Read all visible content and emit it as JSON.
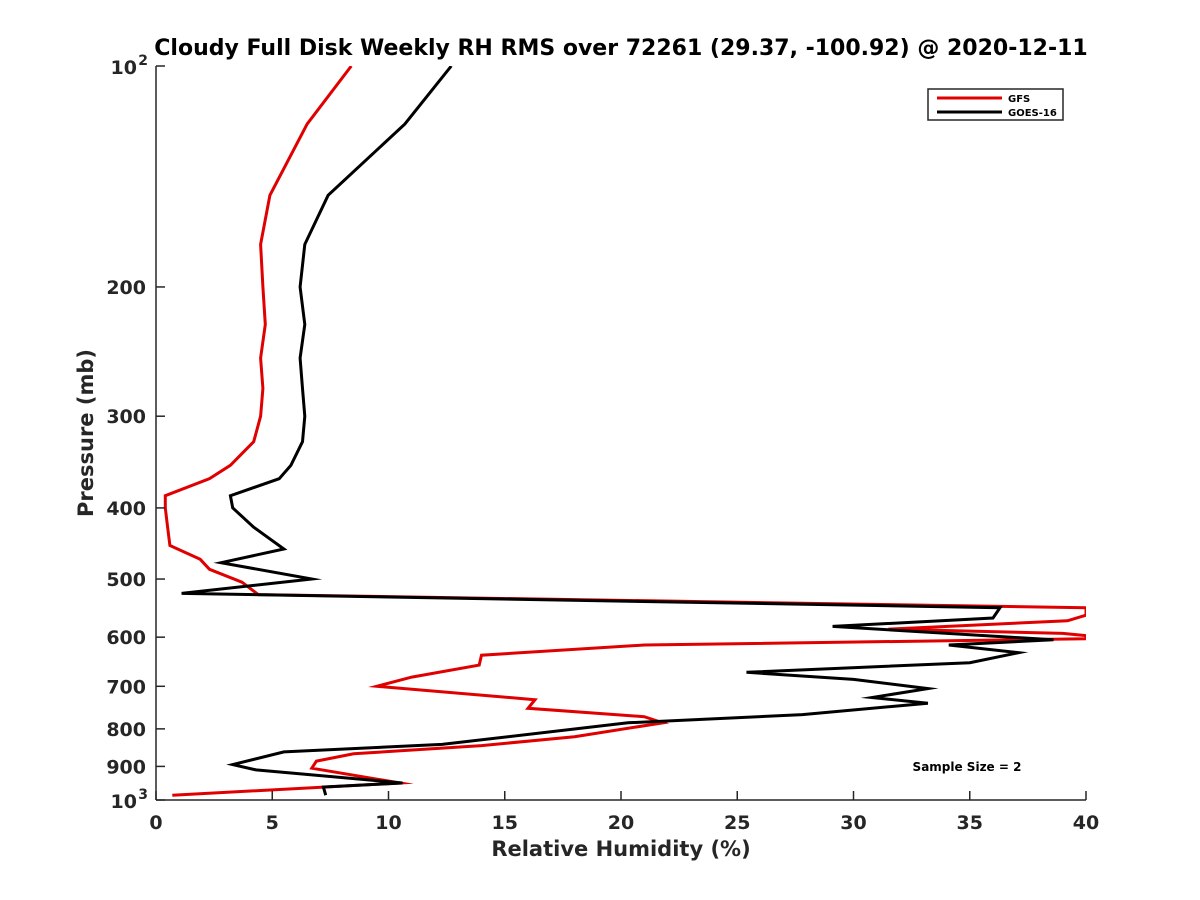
{
  "chart_data": {
    "type": "line",
    "title": "Cloudy Full Disk Weekly RH RMS over 72261 (29.37, -100.92) @ 2020-12-11",
    "xlabel": "Relative Humidity (%)",
    "ylabel": "Pressure (mb)",
    "xlim": [
      0,
      40
    ],
    "ylim": [
      100,
      1000
    ],
    "yscale": "log",
    "yreversed": true,
    "grid": false,
    "x_ticks": [
      0,
      5,
      10,
      15,
      20,
      25,
      30,
      35,
      40
    ],
    "x_tick_labels": [
      "0",
      "5",
      "10",
      "15",
      "20",
      "25",
      "30",
      "35",
      "40"
    ],
    "y_ticks": [
      100,
      200,
      300,
      400,
      500,
      600,
      700,
      800,
      900,
      1000
    ],
    "y_tick_labels": [
      {
        "value": 100,
        "base": "10",
        "exp": "2"
      },
      {
        "value": 200,
        "base": "200",
        "exp": ""
      },
      {
        "value": 300,
        "base": "300",
        "exp": ""
      },
      {
        "value": 400,
        "base": "400",
        "exp": ""
      },
      {
        "value": 500,
        "base": "500",
        "exp": ""
      },
      {
        "value": 600,
        "base": "600",
        "exp": ""
      },
      {
        "value": 700,
        "base": "700",
        "exp": ""
      },
      {
        "value": 800,
        "base": "800",
        "exp": ""
      },
      {
        "value": 900,
        "base": "900",
        "exp": ""
      },
      {
        "value": 1000,
        "base": "10",
        "exp": "3"
      }
    ],
    "legend_position": "top-right",
    "annotation": "Sample Size = 2",
    "series": [
      {
        "name": "GFS",
        "color": "#e00000",
        "points": [
          {
            "x": 8.4,
            "y": 100
          },
          {
            "x": 6.5,
            "y": 120
          },
          {
            "x": 4.9,
            "y": 150
          },
          {
            "x": 4.5,
            "y": 175
          },
          {
            "x": 4.6,
            "y": 200
          },
          {
            "x": 4.7,
            "y": 225
          },
          {
            "x": 4.5,
            "y": 250
          },
          {
            "x": 4.6,
            "y": 275
          },
          {
            "x": 4.5,
            "y": 300
          },
          {
            "x": 4.2,
            "y": 325
          },
          {
            "x": 3.2,
            "y": 350
          },
          {
            "x": 2.3,
            "y": 365
          },
          {
            "x": 0.4,
            "y": 385
          },
          {
            "x": 0.4,
            "y": 400
          },
          {
            "x": 0.5,
            "y": 425
          },
          {
            "x": 0.6,
            "y": 450
          },
          {
            "x": 1.9,
            "y": 470
          },
          {
            "x": 2.3,
            "y": 485
          },
          {
            "x": 3.7,
            "y": 505
          },
          {
            "x": 4.4,
            "y": 525
          },
          {
            "x": 40,
            "y": 547
          },
          {
            "x": 40,
            "y": 560
          },
          {
            "x": 39.2,
            "y": 570
          },
          {
            "x": 31.5,
            "y": 585
          },
          {
            "x": 39.0,
            "y": 593
          },
          {
            "x": 40,
            "y": 597
          },
          {
            "x": 40,
            "y": 603
          },
          {
            "x": 21.0,
            "y": 615
          },
          {
            "x": 14.0,
            "y": 635
          },
          {
            "x": 13.9,
            "y": 655
          },
          {
            "x": 11.0,
            "y": 680
          },
          {
            "x": 9.5,
            "y": 700
          },
          {
            "x": 16.3,
            "y": 730
          },
          {
            "x": 16.0,
            "y": 750
          },
          {
            "x": 21.0,
            "y": 770
          },
          {
            "x": 21.8,
            "y": 785
          },
          {
            "x": 18.0,
            "y": 820
          },
          {
            "x": 14.0,
            "y": 843
          },
          {
            "x": 8.5,
            "y": 865
          },
          {
            "x": 6.9,
            "y": 885
          },
          {
            "x": 6.7,
            "y": 905
          },
          {
            "x": 10.5,
            "y": 948
          },
          {
            "x": 0.7,
            "y": 985
          }
        ]
      },
      {
        "name": "GOES-16",
        "color": "#000000",
        "points": [
          {
            "x": 12.7,
            "y": 100
          },
          {
            "x": 10.7,
            "y": 120
          },
          {
            "x": 7.4,
            "y": 150
          },
          {
            "x": 6.4,
            "y": 175
          },
          {
            "x": 6.2,
            "y": 200
          },
          {
            "x": 6.4,
            "y": 225
          },
          {
            "x": 6.2,
            "y": 250
          },
          {
            "x": 6.3,
            "y": 275
          },
          {
            "x": 6.4,
            "y": 300
          },
          {
            "x": 6.3,
            "y": 325
          },
          {
            "x": 5.8,
            "y": 350
          },
          {
            "x": 5.3,
            "y": 365
          },
          {
            "x": 3.2,
            "y": 385
          },
          {
            "x": 3.3,
            "y": 400
          },
          {
            "x": 4.2,
            "y": 425
          },
          {
            "x": 5.5,
            "y": 455
          },
          {
            "x": 2.8,
            "y": 475
          },
          {
            "x": 6.7,
            "y": 500
          },
          {
            "x": 1.1,
            "y": 523
          },
          {
            "x": 36.3,
            "y": 547
          },
          {
            "x": 36.0,
            "y": 565
          },
          {
            "x": 29.1,
            "y": 580
          },
          {
            "x": 38.6,
            "y": 605
          },
          {
            "x": 34.1,
            "y": 615
          },
          {
            "x": 37.1,
            "y": 630
          },
          {
            "x": 35.0,
            "y": 650
          },
          {
            "x": 25.4,
            "y": 670
          },
          {
            "x": 30.0,
            "y": 685
          },
          {
            "x": 33.2,
            "y": 705
          },
          {
            "x": 30.8,
            "y": 725
          },
          {
            "x": 33.2,
            "y": 738
          },
          {
            "x": 27.8,
            "y": 765
          },
          {
            "x": 20.3,
            "y": 785
          },
          {
            "x": 12.3,
            "y": 840
          },
          {
            "x": 5.5,
            "y": 860
          },
          {
            "x": 3.3,
            "y": 895
          },
          {
            "x": 4.3,
            "y": 910
          },
          {
            "x": 10.6,
            "y": 948
          },
          {
            "x": 7.2,
            "y": 960
          },
          {
            "x": 7.3,
            "y": 985
          }
        ]
      }
    ]
  }
}
